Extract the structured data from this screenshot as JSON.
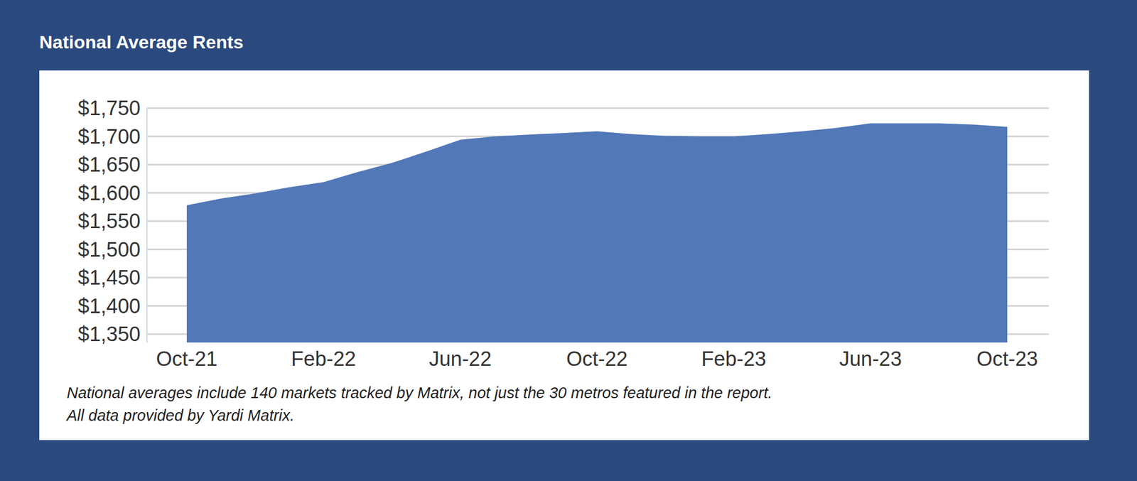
{
  "chart_data": {
    "type": "area",
    "title": "National Average Rents",
    "categories": [
      "Oct-21",
      null,
      null,
      null,
      "Feb-22",
      null,
      null,
      null,
      "Jun-22",
      null,
      null,
      null,
      "Oct-22",
      null,
      null,
      null,
      "Feb-23",
      null,
      null,
      null,
      "Jun-23",
      null,
      null,
      null,
      "Oct-23"
    ],
    "values": [
      1578,
      1590,
      1599,
      1610,
      1619,
      1637,
      1653,
      1673,
      1694,
      1700,
      1703,
      1706,
      1709,
      1704,
      1701,
      1700,
      1700,
      1704,
      1709,
      1715,
      1723,
      1723,
      1723,
      1721,
      1717
    ],
    "color": "#5278b8",
    "ylim": [
      1335,
      1750
    ],
    "yticks": [
      {
        "value": 1350,
        "label": "$1,350"
      },
      {
        "value": 1400,
        "label": "$1,400"
      },
      {
        "value": 1450,
        "label": "$1,450"
      },
      {
        "value": 1500,
        "label": "$1,500"
      },
      {
        "value": 1550,
        "label": "$1,550"
      },
      {
        "value": 1600,
        "label": "$1,600"
      },
      {
        "value": 1650,
        "label": "$1,650"
      },
      {
        "value": 1700,
        "label": "$1,700"
      },
      {
        "value": 1750,
        "label": "$1,750"
      }
    ],
    "grid": true,
    "annotations": [
      "National averages include 140 markets tracked by Matrix, not just the 30 metros featured in the report.",
      "All data provided by Yardi Matrix."
    ]
  }
}
